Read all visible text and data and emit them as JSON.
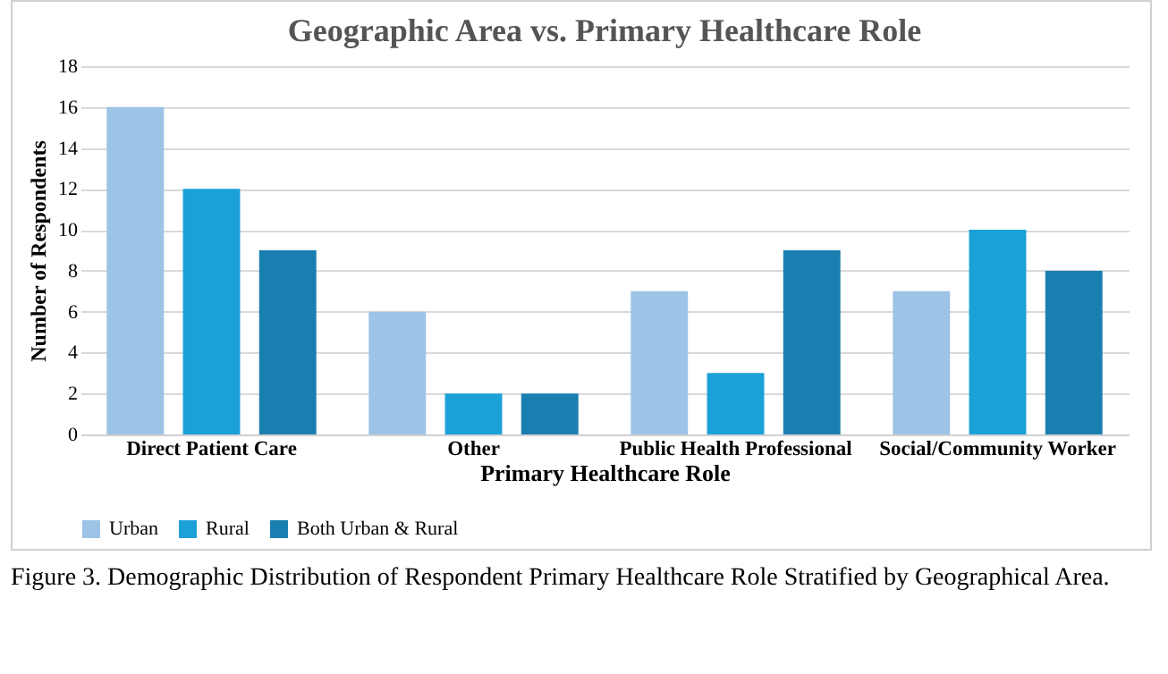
{
  "chart_data": {
    "type": "bar",
    "title": "Geographic Area vs. Primary Healthcare Role",
    "xlabel": "Primary Healthcare Role",
    "ylabel": "Number of Respondents",
    "categories": [
      "Direct Patient Care",
      "Other",
      "Public Health Professional",
      "Social/Community Worker"
    ],
    "series": [
      {
        "name": "Urban",
        "color": "#9dc3e6",
        "values": [
          16,
          6,
          7,
          7
        ]
      },
      {
        "name": "Rural",
        "color": "#1ba1d8",
        "values": [
          12,
          2,
          3,
          10
        ]
      },
      {
        "name": "Both Urban & Rural",
        "color": "#1a7fb0",
        "values": [
          9,
          2,
          9,
          8
        ]
      }
    ],
    "ylim": [
      0,
      18
    ],
    "yticks": [
      0,
      2,
      4,
      6,
      8,
      10,
      12,
      14,
      16,
      18
    ],
    "grid": "y",
    "legend": "bottom",
    "annotations": [
      "Figure 3. Demographic Distribution of Respondent Primary Healthcare Role  Stratified by Geographical Area."
    ]
  }
}
